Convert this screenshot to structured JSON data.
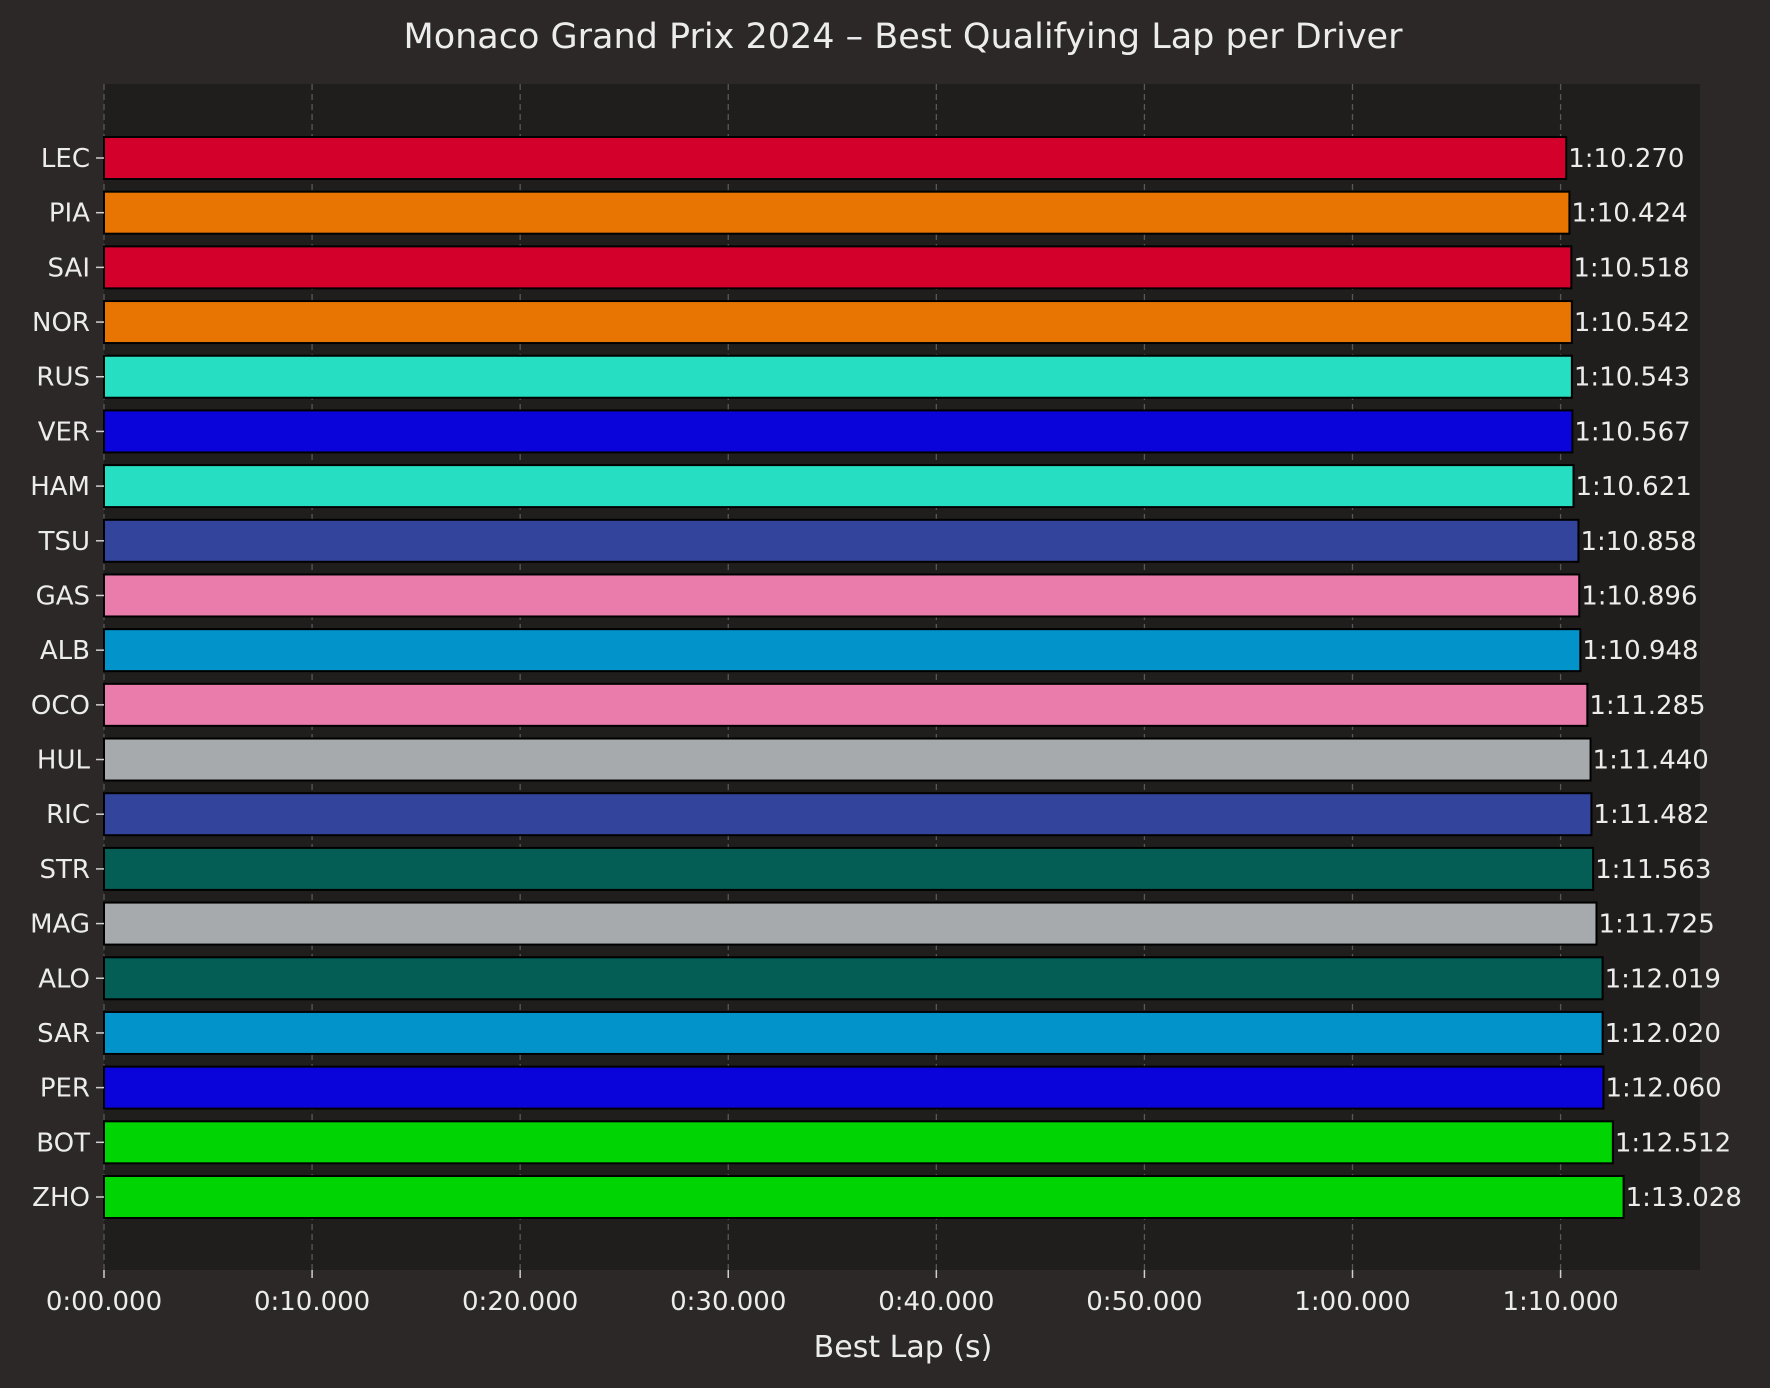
{
  "chart_data": {
    "type": "bar",
    "orientation": "horizontal",
    "title": "Monaco Grand Prix 2024 – Best Qualifying Lap per Driver",
    "xlabel": "Best Lap (s)",
    "ylabel": "",
    "xlim": [
      0,
      76.7
    ],
    "x_ticks": [
      {
        "value": 0,
        "label": "0:00.000"
      },
      {
        "value": 10,
        "label": "0:10.000"
      },
      {
        "value": 20,
        "label": "0:20.000"
      },
      {
        "value": 30,
        "label": "0:30.000"
      },
      {
        "value": 40,
        "label": "0:40.000"
      },
      {
        "value": 50,
        "label": "0:50.000"
      },
      {
        "value": 60,
        "label": "1:00.000"
      },
      {
        "value": 70,
        "label": "1:10.000"
      }
    ],
    "grid": "vertical dashed",
    "colors": {
      "page_bg": "#2b2827",
      "plot_bg": "#1f1e1d",
      "text": "#ececec",
      "grid": "#5a5857",
      "bar_edge": "#000000"
    },
    "bars": [
      {
        "driver": "LEC",
        "value": 70.27,
        "label": "1:10.270",
        "color": "#d4002c"
      },
      {
        "driver": "PIA",
        "value": 70.424,
        "label": "1:10.424",
        "color": "#e87502"
      },
      {
        "driver": "SAI",
        "value": 70.518,
        "label": "1:10.518",
        "color": "#d4002c"
      },
      {
        "driver": "NOR",
        "value": 70.542,
        "label": "1:10.542",
        "color": "#e87502"
      },
      {
        "driver": "RUS",
        "value": 70.543,
        "label": "1:10.543",
        "color": "#26dec1"
      },
      {
        "driver": "VER",
        "value": 70.567,
        "label": "1:10.567",
        "color": "#0a04db"
      },
      {
        "driver": "HAM",
        "value": 70.621,
        "label": "1:10.621",
        "color": "#26dec1"
      },
      {
        "driver": "TSU",
        "value": 70.858,
        "label": "1:10.858",
        "color": "#32449b"
      },
      {
        "driver": "GAS",
        "value": 70.896,
        "label": "1:10.896",
        "color": "#e97cab"
      },
      {
        "driver": "ALB",
        "value": 70.948,
        "label": "1:10.948",
        "color": "#0393cb"
      },
      {
        "driver": "OCO",
        "value": 71.285,
        "label": "1:11.285",
        "color": "#e97cab"
      },
      {
        "driver": "HUL",
        "value": 71.44,
        "label": "1:11.440",
        "color": "#a6aaad"
      },
      {
        "driver": "RIC",
        "value": 71.482,
        "label": "1:11.482",
        "color": "#32449b"
      },
      {
        "driver": "STR",
        "value": 71.563,
        "label": "1:11.563",
        "color": "#045e55"
      },
      {
        "driver": "MAG",
        "value": 71.725,
        "label": "1:11.725",
        "color": "#a6aaad"
      },
      {
        "driver": "ALO",
        "value": 72.019,
        "label": "1:12.019",
        "color": "#045e55"
      },
      {
        "driver": "SAR",
        "value": 72.02,
        "label": "1:12.020",
        "color": "#0393cb"
      },
      {
        "driver": "PER",
        "value": 72.06,
        "label": "1:12.060",
        "color": "#0a04db"
      },
      {
        "driver": "BOT",
        "value": 72.512,
        "label": "1:12.512",
        "color": "#01d403"
      },
      {
        "driver": "ZHO",
        "value": 73.028,
        "label": "1:13.028",
        "color": "#01d403"
      }
    ]
  }
}
